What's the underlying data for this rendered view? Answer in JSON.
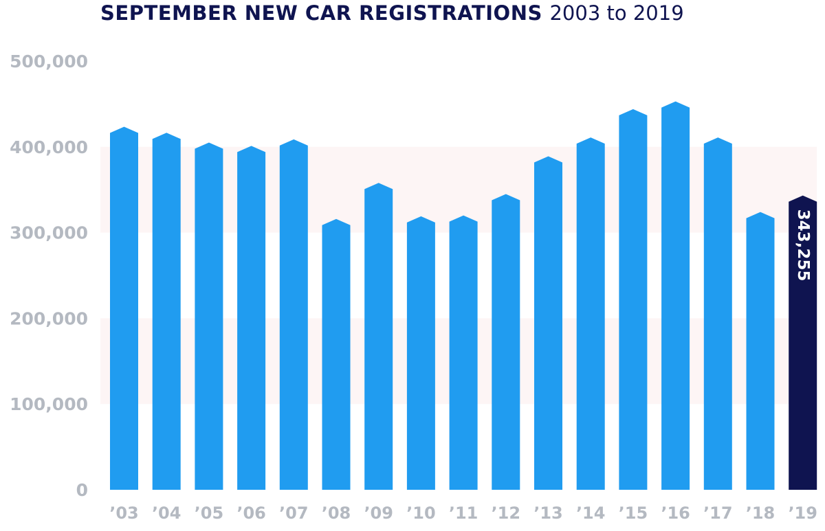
{
  "title": {
    "main": "SEPTEMBER NEW CAR REGISTRATIONS",
    "sub": "2003 to 2019"
  },
  "colors": {
    "bar": "#209cf0",
    "highlight": "#0f1450",
    "band": "#fdf5f5",
    "tick_text": "#b4b9c1",
    "title": "#0f1450"
  },
  "chart_data": {
    "type": "bar",
    "title": "SEPTEMBER NEW CAR REGISTRATIONS 2003 to 2019",
    "categories": [
      "’03",
      "’04",
      "’05",
      "’06",
      "’07",
      "’08",
      "’09",
      "’10",
      "’11",
      "’12",
      "’13",
      "’14",
      "’15",
      "’16",
      "’17",
      "’18",
      "’19"
    ],
    "values": [
      423447,
      416460,
      405059,
      401108,
      408800,
      315955,
      358000,
      319000,
      320000,
      345000,
      389000,
      411000,
      444000,
      453000,
      411000,
      324000,
      343255
    ],
    "highlight_index": 16,
    "data_labels": [
      {
        "index": 16,
        "text": "343,255"
      }
    ],
    "ylim": [
      0,
      500000
    ],
    "yticks": [
      0,
      100000,
      200000,
      300000,
      400000,
      500000
    ],
    "ytick_labels": [
      "0",
      "100,000",
      "200,000",
      "300,000",
      "400,000",
      "500,000"
    ],
    "shaded_bands": [
      [
        100000,
        200000
      ],
      [
        300000,
        400000
      ]
    ],
    "xlabel": "",
    "ylabel": "",
    "grid": false,
    "legend": "none"
  }
}
